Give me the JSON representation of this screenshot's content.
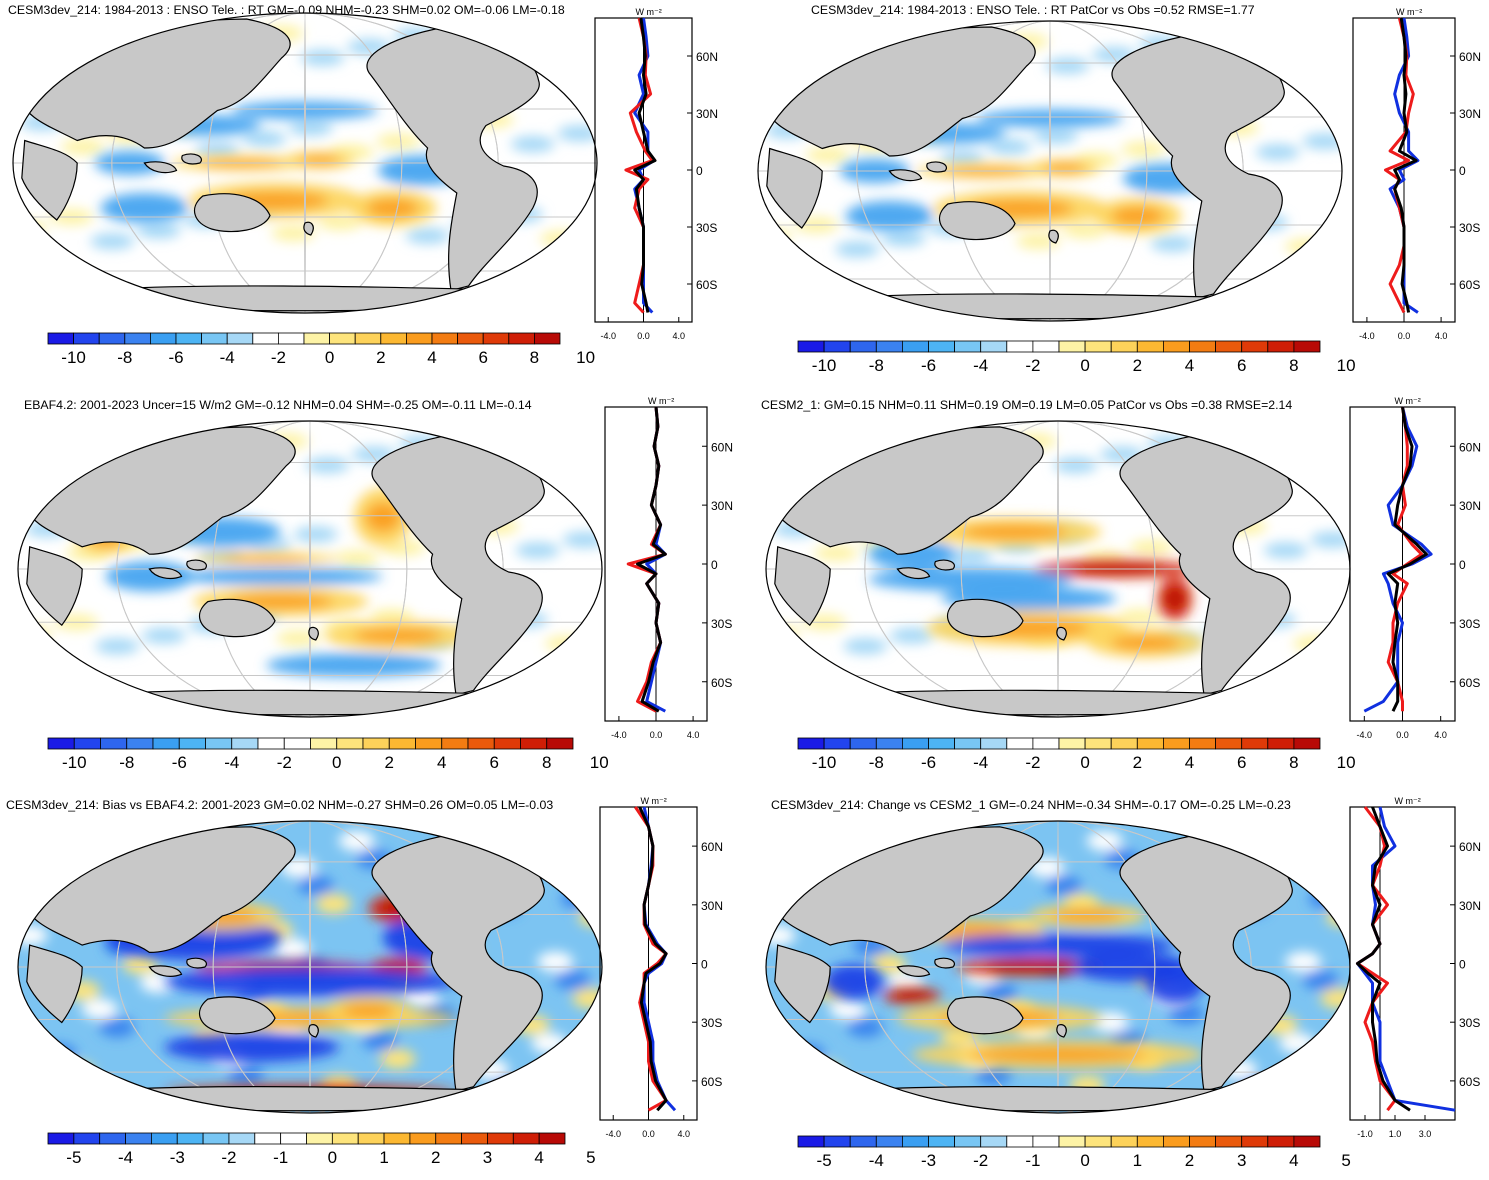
{
  "colors": {
    "ocean_land": "#c8c8c8",
    "blue_line": "#1030e0",
    "red_line": "#ee1b1b",
    "black_line": "#000000"
  },
  "palette_main": [
    "#1a1ae6",
    "#2244ee",
    "#2e66ee",
    "#3b82f0",
    "#3a9ff2",
    "#4db4f4",
    "#78c6f4",
    "#a6d8f6",
    "#ffffff",
    "#ffffff",
    "#fdf3a6",
    "#fde47c",
    "#fdd25a",
    "#fcb832",
    "#fa9c1e",
    "#f37c12",
    "#ea5a0c",
    "#df3a08",
    "#cf1e06",
    "#b80a06"
  ],
  "palette_diff": [
    "#1a1ae6",
    "#2244ee",
    "#2e66ee",
    "#3b82f0",
    "#3a9ff2",
    "#4db4f4",
    "#78c6f4",
    "#a6d8f6",
    "#ffffff",
    "#ffffff",
    "#fdf3a6",
    "#fde47c",
    "#fdd25a",
    "#fcb832",
    "#fa9c1e",
    "#f37c12",
    "#ea5a0c",
    "#df3a08",
    "#cf1e06",
    "#b80a06"
  ],
  "zonal_axis": {
    "unit_label": "W m⁻²",
    "lat_labels": [
      "60N",
      "30N",
      "0",
      "30S",
      "60S"
    ]
  },
  "panels": [
    {
      "title": "CESM3dev_214: 1984-2013 : ENSO Tele. : RT GM=-0.09 NHM=-0.23 SHM=0.02 OM=-0.06 LM=-0.18",
      "colorbar_labels": [
        "-10",
        "-8",
        "-6",
        "-4",
        "-2",
        "0",
        "2",
        "4",
        "6",
        "8",
        "10"
      ],
      "zonal_x_labels": [
        "-4.0",
        "0.0",
        "4.0"
      ]
    },
    {
      "title": "CESM3dev_214: 1984-2013 : ENSO Tele. : RT PatCor vs Obs =0.52 RMSE=1.77",
      "colorbar_labels": [
        "-10",
        "-8",
        "-6",
        "-4",
        "-2",
        "0",
        "2",
        "4",
        "6",
        "8",
        "10"
      ],
      "zonal_x_labels": [
        "-4.0",
        "0.0",
        "4.0"
      ]
    },
    {
      "title": "EBAF4.2: 2001-2023 Uncer=15 W/m2 GM=-0.12 NHM=0.04 SHM=-0.25 OM=-0.11 LM=-0.14",
      "colorbar_labels": [
        "-10",
        "-8",
        "-6",
        "-4",
        "-2",
        "0",
        "2",
        "4",
        "6",
        "8",
        "10"
      ],
      "zonal_x_labels": [
        "-4.0",
        "0.0",
        "4.0"
      ]
    },
    {
      "title": "CESM2_1: GM=0.15 NHM=0.11 SHM=0.19 OM=0.19 LM=0.05 PatCor vs Obs =0.38 RMSE=2.14",
      "colorbar_labels": [
        "-10",
        "-8",
        "-6",
        "-4",
        "-2",
        "0",
        "2",
        "4",
        "6",
        "8",
        "10"
      ],
      "zonal_x_labels": [
        "-4.0",
        "0.0",
        "4.0"
      ]
    },
    {
      "title": "CESM3dev_214: Bias vs EBAF4.2: 2001-2023 GM=0.02 NHM=-0.27 SHM=0.26 OM=0.05 LM=-0.03",
      "colorbar_labels": [
        "-5",
        "-4",
        "-3",
        "-2",
        "-1",
        "0",
        "1",
        "2",
        "3",
        "4",
        "5"
      ],
      "zonal_x_labels": [
        "-4.0",
        "0.0",
        "4.0"
      ]
    },
    {
      "title": "CESM3dev_214: Change vs CESM2_1 GM=-0.24 NHM=-0.34 SHM=-0.17 OM=-0.25 LM=-0.23",
      "colorbar_labels": [
        "-5",
        "-4",
        "-3",
        "-2",
        "-1",
        "0",
        "1",
        "2",
        "3",
        "4",
        "5"
      ],
      "zonal_x_labels": [
        "-1.0",
        "1.0",
        "3.0"
      ]
    }
  ],
  "chart_data": [
    {
      "type": "heatmap",
      "title": "CESM3dev_214: 1984-2013 : ENSO Tele. : RT GM=-0.09 NHM=-0.23 SHM=0.02 OM=-0.06 LM=-0.18",
      "colorbar": [
        -10,
        -8,
        -6,
        -4,
        -2,
        0,
        2,
        4,
        6,
        8,
        10
      ],
      "zonal": {
        "lat": [
          80,
          70,
          60,
          50,
          40,
          30,
          20,
          10,
          5,
          0,
          -5,
          -10,
          -20,
          -30,
          -40,
          -50,
          -60,
          -70,
          -75
        ],
        "red": [
          -0.5,
          0,
          0.3,
          0.2,
          0.8,
          -1.5,
          -0.8,
          0.2,
          1,
          -2,
          0.5,
          -0.5,
          -1,
          0,
          0,
          0,
          -0.5,
          -1,
          0
        ],
        "blue": [
          0,
          0.3,
          0.5,
          -0.5,
          0,
          -1,
          0.5,
          0.5,
          1.2,
          -0.5,
          0,
          -1,
          -0.5,
          0,
          0,
          0,
          0,
          0,
          1
        ],
        "black": [
          -0.3,
          0,
          0.2,
          0,
          0.3,
          -0.5,
          0,
          0.5,
          1.3,
          -1,
          0,
          -0.8,
          -0.5,
          0,
          0,
          0,
          -0.2,
          0.3,
          0.5
        ]
      }
    },
    {
      "type": "heatmap",
      "title": "CESM3dev_214: 1984-2013 : ENSO Tele. : RT PatCor vs Obs =0.52 RMSE=1.77",
      "colorbar": [
        -10,
        -8,
        -6,
        -4,
        -2,
        0,
        2,
        4,
        6,
        8,
        10
      ],
      "zonal": {
        "lat": [
          80,
          70,
          60,
          50,
          40,
          30,
          20,
          10,
          5,
          0,
          -5,
          -10,
          -20,
          -30,
          -40,
          -50,
          -60,
          -70,
          -75
        ],
        "red": [
          -0.5,
          0,
          0.3,
          0.2,
          1,
          0.5,
          0.2,
          -1.5,
          0.5,
          -2,
          -0.5,
          -1,
          -0.5,
          0,
          0,
          -0.5,
          -1.5,
          -0.5,
          0
        ],
        "blue": [
          0,
          0.3,
          0.5,
          -0.5,
          -1,
          -0.5,
          0.5,
          0.5,
          1.5,
          -0.5,
          0,
          -1.5,
          -0.5,
          0,
          0,
          0,
          0,
          0,
          1.5
        ],
        "black": [
          -0.3,
          0,
          0.2,
          0,
          0.2,
          0,
          0.3,
          -0.5,
          1.3,
          -1,
          -0.5,
          -1,
          -0.3,
          0,
          0,
          0,
          -0.2,
          0.3,
          0.5
        ]
      }
    },
    {
      "type": "heatmap",
      "title": "EBAF4.2: 2001-2023 Uncer=15 W/m2 GM=-0.12 NHM=0.04 SHM=-0.25 OM=-0.11 LM=-0.14",
      "colorbar": [
        -10,
        -8,
        -6,
        -4,
        -2,
        0,
        2,
        4,
        6,
        8,
        10
      ],
      "zonal": {
        "lat": [
          80,
          70,
          60,
          50,
          40,
          30,
          20,
          10,
          5,
          0,
          -5,
          -10,
          -20,
          -30,
          -40,
          -50,
          -60,
          -70,
          -75
        ],
        "red": [
          0,
          0.2,
          -0.2,
          0.3,
          0,
          -0.5,
          0.5,
          -0.5,
          1,
          -3,
          0,
          -1,
          0.3,
          0,
          0.5,
          -0.5,
          -1,
          -2,
          0
        ],
        "blue": [
          0,
          0.2,
          -0.2,
          0.3,
          0,
          -0.5,
          0.5,
          0,
          1,
          -1,
          0,
          -1,
          0.3,
          0,
          0.5,
          0,
          -0.5,
          -1,
          1
        ],
        "black": [
          0,
          0.2,
          -0.2,
          0.3,
          0,
          -0.5,
          0.5,
          -0.3,
          1,
          -2,
          0,
          -1,
          0.3,
          0,
          0.5,
          -0.3,
          -0.8,
          -1.5,
          0.3
        ]
      }
    },
    {
      "type": "heatmap",
      "title": "CESM2_1: GM=0.15 NHM=0.11 SHM=0.19 OM=0.19 LM=0.05 PatCor vs Obs =0.38 RMSE=2.14",
      "colorbar": [
        -10,
        -8,
        -6,
        -4,
        -2,
        0,
        2,
        4,
        6,
        8,
        10
      ],
      "zonal": {
        "lat": [
          80,
          70,
          60,
          50,
          40,
          30,
          20,
          10,
          5,
          0,
          -5,
          -10,
          -20,
          -30,
          -40,
          -50,
          -60,
          -70,
          -75
        ],
        "red": [
          0,
          0.3,
          0.5,
          0.5,
          0,
          0.3,
          -0.5,
          1,
          2,
          0.5,
          -1,
          0.5,
          -0.5,
          -1,
          -1,
          -1.5,
          -0.5,
          0,
          0
        ],
        "blue": [
          0,
          0.5,
          1.5,
          1,
          0,
          -1.5,
          -1,
          2,
          3,
          1,
          -2,
          -1.5,
          -1,
          0,
          -0.5,
          -0.5,
          -0.5,
          -2,
          -4
        ],
        "black": [
          0,
          0.3,
          1,
          0.8,
          0,
          -0.5,
          -0.8,
          1.5,
          2.5,
          0.8,
          -1.5,
          -0.5,
          -0.8,
          -0.5,
          -0.8,
          -1,
          -0.5,
          -0.5,
          -1
        ]
      }
    },
    {
      "type": "heatmap",
      "title": "CESM3dev_214: Bias vs EBAF4.2: 2001-2023 GM=0.02 NHM=-0.27 SHM=0.26 OM=0.05 LM=-0.03",
      "colorbar": [
        -5,
        -4,
        -3,
        -2,
        -1,
        0,
        1,
        2,
        3,
        4,
        5
      ],
      "zonal": {
        "lat": [
          80,
          70,
          60,
          50,
          40,
          30,
          20,
          10,
          5,
          0,
          -5,
          -10,
          -20,
          -30,
          -40,
          -50,
          -60,
          -70,
          -75
        ],
        "red": [
          -1.5,
          0,
          0.5,
          0.5,
          0,
          -0.5,
          -0.5,
          0.5,
          2,
          1,
          -0.5,
          -0.5,
          -1,
          -0.5,
          0,
          0,
          0.5,
          2,
          0
        ],
        "blue": [
          -0.5,
          0,
          0.5,
          0.3,
          0,
          -0.5,
          -0.3,
          1,
          2,
          1.5,
          0,
          -0.5,
          -0.5,
          0,
          0.5,
          0.5,
          1,
          2,
          3
        ],
        "black": [
          -1,
          0,
          0.5,
          0.4,
          0,
          -0.5,
          -0.4,
          0.8,
          2,
          1.3,
          -0.3,
          -0.5,
          -0.8,
          -0.3,
          0.2,
          0.3,
          0.8,
          2,
          1
        ]
      }
    },
    {
      "type": "heatmap",
      "title": "CESM3dev_214: Change vs CESM2_1 GM=-0.24 NHM=-0.34 SHM=-0.17 OM=-0.25 LM=-0.23",
      "colorbar": [
        -5,
        -4,
        -3,
        -2,
        -1,
        0,
        1,
        2,
        3,
        4,
        5
      ],
      "zonal": {
        "lat": [
          80,
          70,
          60,
          50,
          40,
          30,
          20,
          10,
          5,
          0,
          -5,
          -10,
          -20,
          -30,
          -40,
          -50,
          -60,
          -70,
          -75
        ],
        "red": [
          -1,
          0,
          0.3,
          0,
          -0.5,
          0.5,
          -0.5,
          0,
          -0.5,
          -1.5,
          -0.5,
          0.5,
          -0.5,
          -1,
          -0.5,
          -0.3,
          0,
          1,
          0.5
        ],
        "blue": [
          0,
          0.3,
          1,
          -0.5,
          -0.5,
          -0.3,
          -0.5,
          0,
          -0.5,
          -1.5,
          -1,
          -0.5,
          -0.5,
          0,
          0,
          0,
          0.5,
          1,
          5
        ],
        "black": [
          -0.5,
          0,
          0.5,
          -0.3,
          -0.5,
          0,
          -0.5,
          0,
          -0.5,
          -1.5,
          -0.8,
          0,
          -0.5,
          -0.5,
          -0.3,
          -0.2,
          0.2,
          1,
          2
        ]
      }
    }
  ]
}
